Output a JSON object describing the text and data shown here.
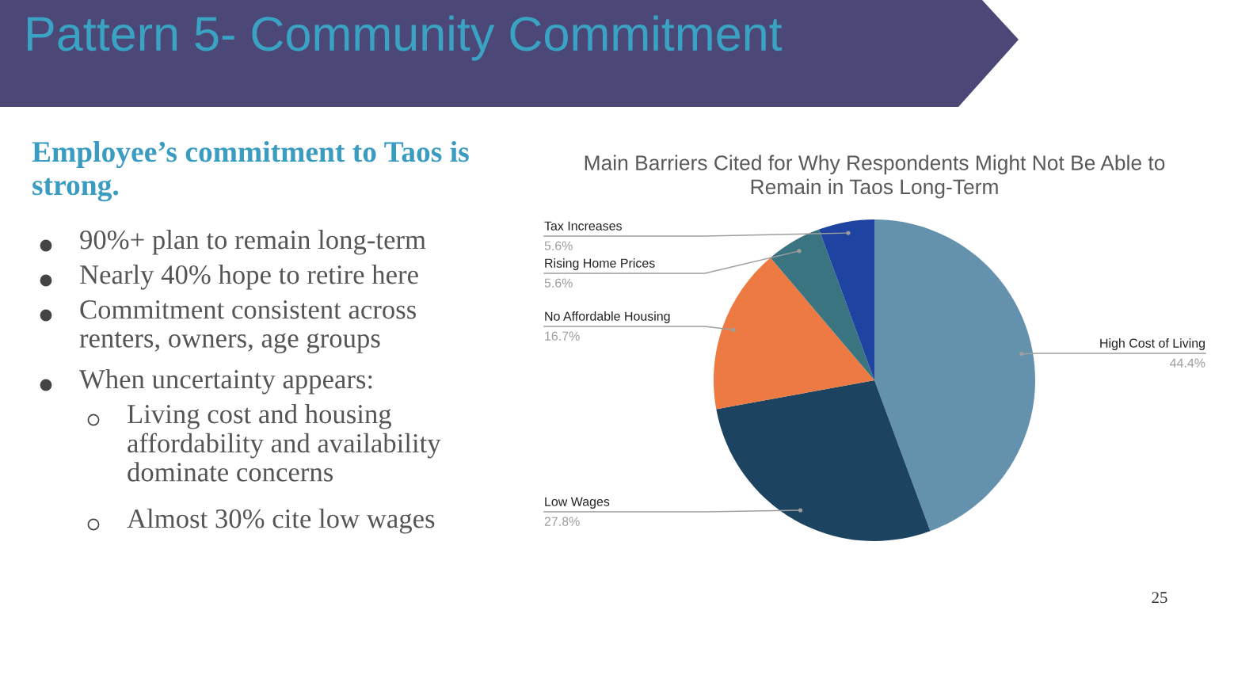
{
  "chart_data": {
    "type": "pie",
    "title": "Main Barriers Cited for Why Respondents Might Not Be Able to\nRemain in Taos Long-Term",
    "categories": [
      "High Cost of Living",
      "Low Wages",
      "No Affordable Housing",
      "Rising Home Prices",
      "Tax Increases"
    ],
    "values": [
      44.4,
      27.8,
      16.7,
      5.6,
      5.6
    ],
    "colors": [
      "#6492ad",
      "#1c4360",
      "#ec7a42",
      "#3a7480",
      "#1f43a0"
    ],
    "value_labels": [
      "44.4%",
      "27.8%",
      "16.7%",
      "5.6%",
      "5.6%"
    ],
    "annotations": [
      "Pattern 5- Community Commitment",
      "Employee’s commitment to Taos is\nstrong.",
      "90%+ plan to remain long-term",
      "Nearly 40% hope to retire here",
      "Commitment consistent across\nrenters, owners, age groups",
      "When uncertainty appears:",
      "Living cost and housing\naffordability and availability\ndominate concerns",
      "Almost 30% cite low wages",
      "25"
    ]
  }
}
